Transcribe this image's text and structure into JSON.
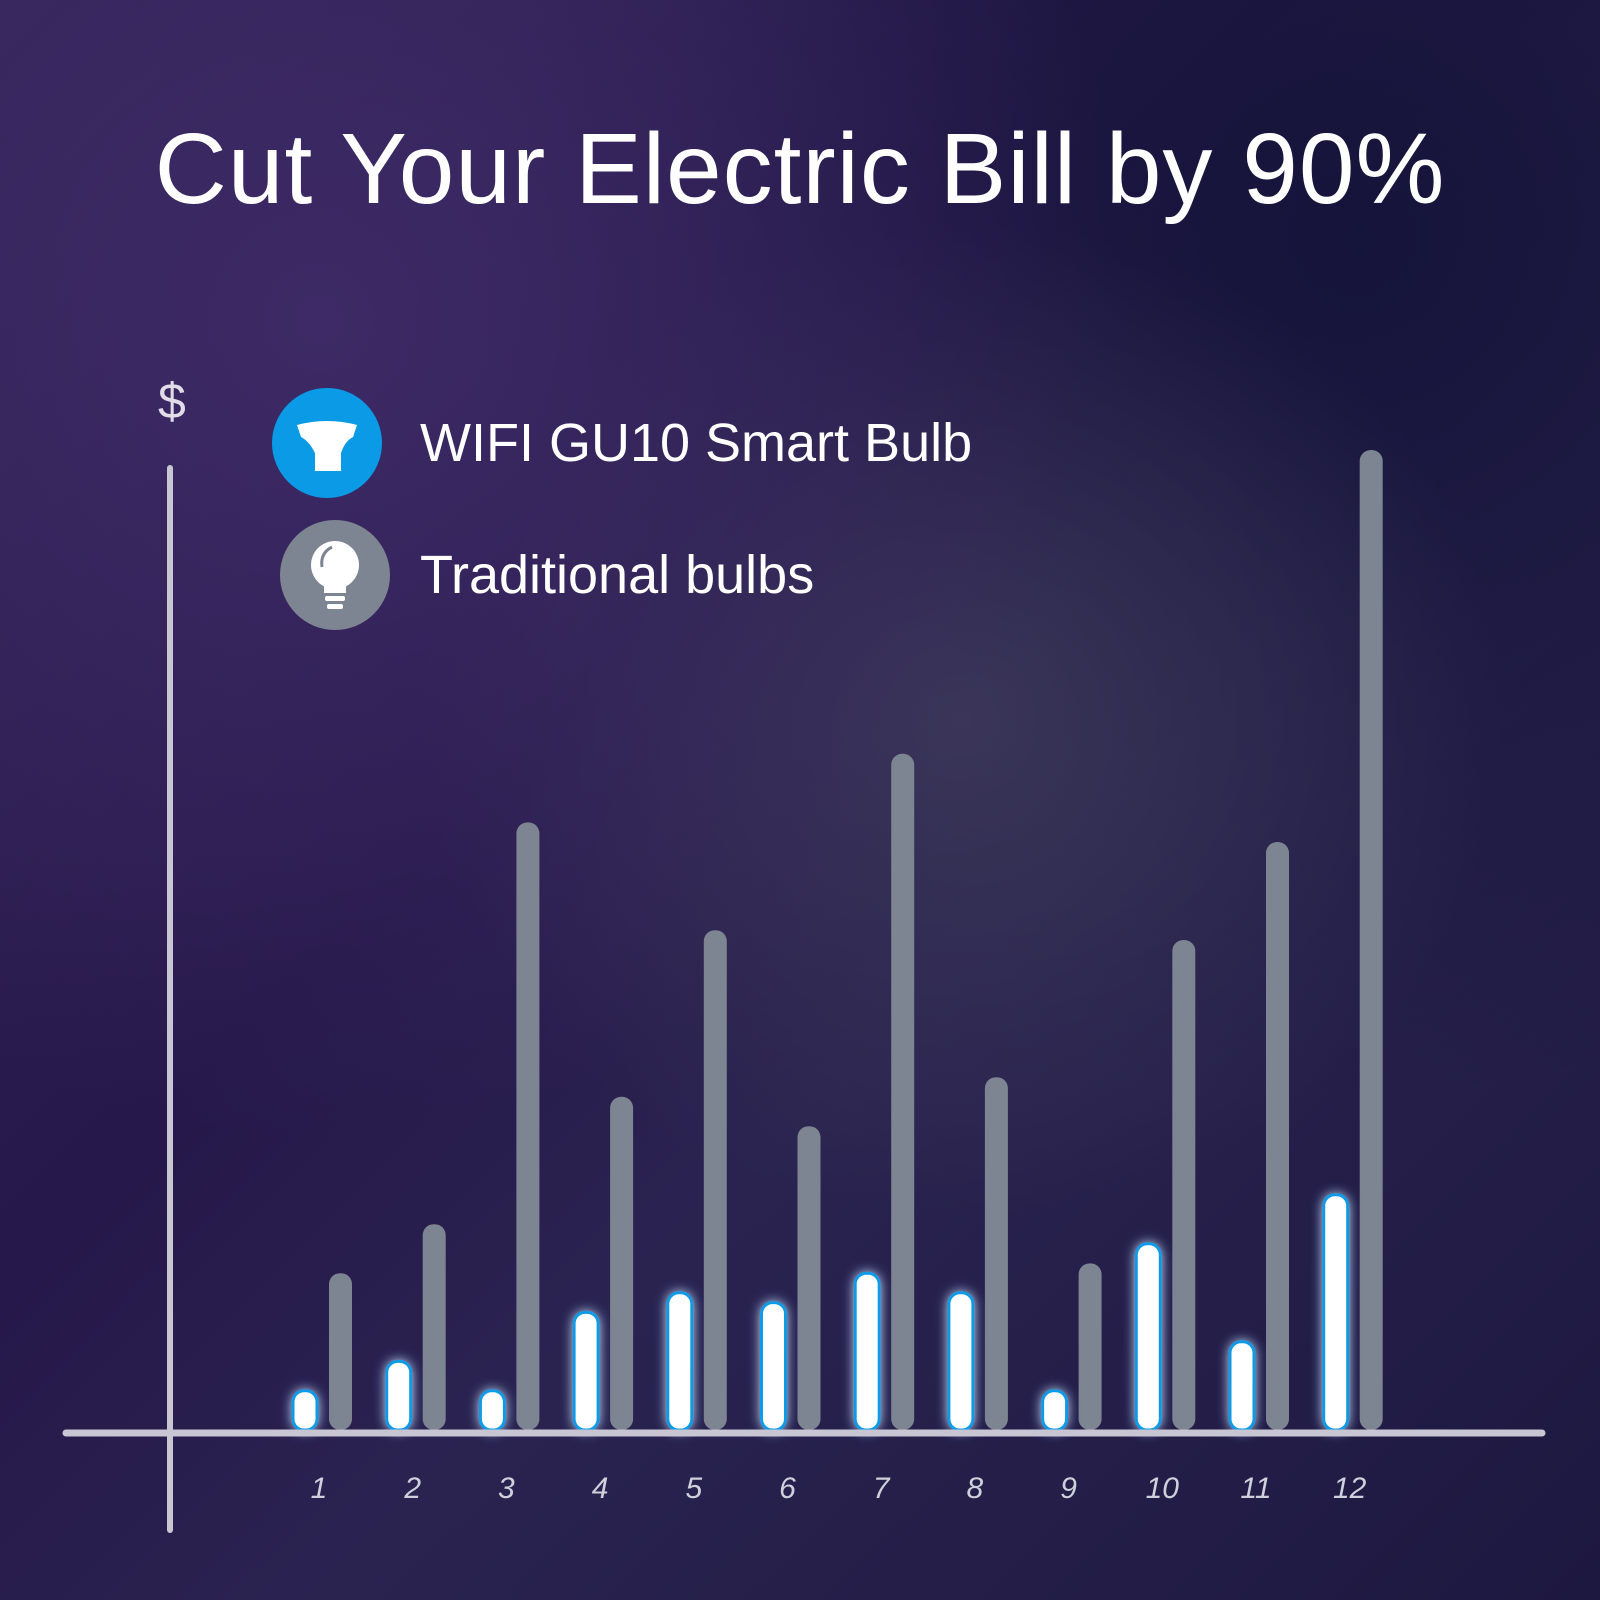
{
  "title": "Cut Your Electric Bill by 90%",
  "legend": [
    {
      "label": "WIFI GU10 Smart Bulb",
      "icon": "gu10-bulb-icon",
      "color": "#0a9ae6"
    },
    {
      "label": "Traditional bulbs",
      "icon": "lightbulb-icon",
      "color": "#7d8492"
    }
  ],
  "chart_data": {
    "type": "bar",
    "title": "Cut Your Electric Bill by 90%",
    "ylabel": "$",
    "xlabel": "",
    "categories": [
      "1",
      "2",
      "3",
      "4",
      "5",
      "6",
      "7",
      "8",
      "9",
      "10",
      "11",
      "12"
    ],
    "series": [
      {
        "name": "WIFI GU10 Smart Bulb",
        "color": "#ffffff",
        "glow": "#0a9ae6",
        "values": [
          4,
          7,
          4,
          12,
          14,
          13,
          16,
          14,
          4,
          19,
          9,
          24
        ]
      },
      {
        "name": "Traditional bulbs",
        "color": "#7d8492",
        "values": [
          16,
          21,
          62,
          34,
          51,
          31,
          69,
          36,
          17,
          50,
          60,
          100
        ]
      }
    ],
    "ylim": [
      0,
      100
    ],
    "grid": false,
    "legend_position": "top-left"
  }
}
